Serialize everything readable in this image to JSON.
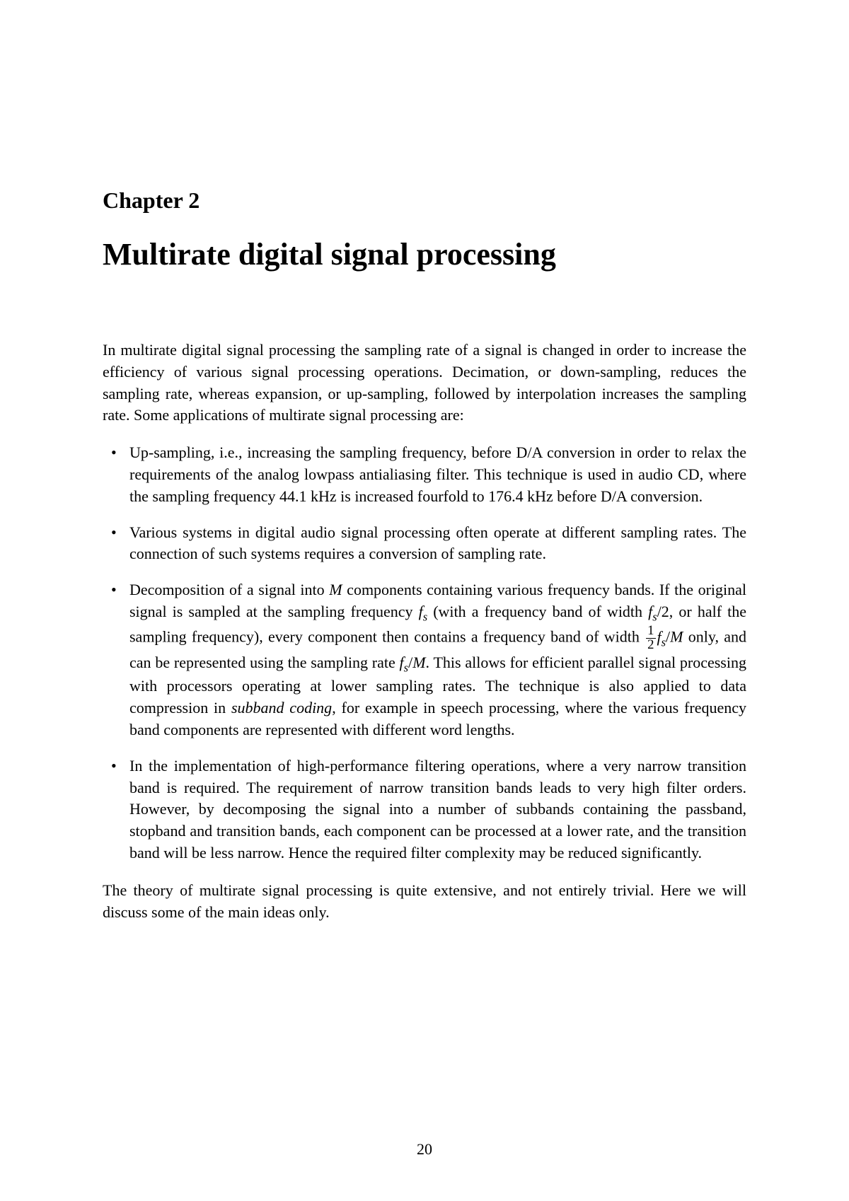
{
  "chapter": {
    "label": "Chapter 2",
    "title": "Multirate digital signal processing"
  },
  "intro": "In multirate digital signal processing the sampling rate of a signal is changed in order to increase the efficiency of various signal processing operations. Decimation, or down-sampling, reduces the sampling rate, whereas expansion, or up-sampling, followed by interpolation increases the sampling rate. Some applications of multirate signal processing are:",
  "bullets": [
    {
      "html": "Up-sampling, i.e., increasing the sampling frequency, before D/A conversion in order to relax the requirements of the analog lowpass antialiasing filter. This technique is used in audio CD, where the sampling frequency 44.1 kHz is increased fourfold to 176.4 kHz before D/A conversion."
    },
    {
      "html": "Various systems in digital audio signal processing often operate at different sampling rates. The connection of such systems requires a conversion of sampling rate."
    },
    {
      "html": "Decomposition of a signal into <span class=\"math-var\">M</span> components containing various frequency bands. If the original signal is sampled at the sampling frequency <span class=\"math-var\">f<span class=\"subscript\">s</span></span> (with a frequency band of width <span class=\"math-var\">f<span class=\"subscript\">s</span></span>/2, or half the sampling frequency), every component then contains a frequency band of width <span class=\"fraction\"><span class=\"num\">1</span><span class=\"den\">2</span></span><span class=\"math-var\">f<span class=\"subscript\">s</span></span>/<span class=\"math-var\">M</span> only, and can be represented using the sampling rate <span class=\"math-var\">f<span class=\"subscript\">s</span></span>/<span class=\"math-var\">M</span>. This allows for efficient parallel signal processing with processors operating at lower sampling rates. The technique is also applied to data compression in <span class=\"italic\">subband coding</span>, for example in speech processing, where the various frequency band components are represented with different word lengths."
    },
    {
      "html": "In the implementation of high-performance filtering operations, where a very narrow transition band is required. The requirement of narrow transition bands leads to very high filter orders. However, by decomposing the signal into a number of subbands containing the passband, stopband and transition bands, each component can be processed at a lower rate, and the transition band will be less narrow. Hence the required filter complexity may be reduced significantly."
    }
  ],
  "closing": "The theory of multirate signal processing is quite extensive, and not entirely trivial. Here we will discuss some of the main ideas only.",
  "page_number": "20",
  "colors": {
    "background": "#ffffff",
    "text": "#000000"
  },
  "typography": {
    "body_font": "Times New Roman",
    "chapter_label_size": 32,
    "chapter_title_size": 44,
    "body_size": 22
  }
}
